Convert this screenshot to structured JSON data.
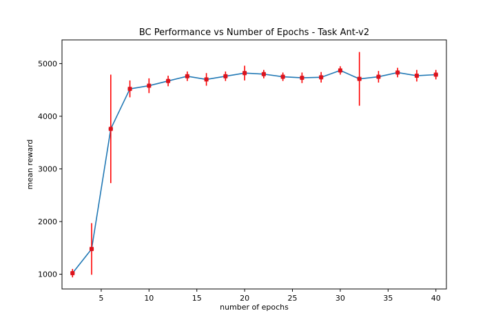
{
  "chart_data": {
    "type": "line",
    "title": "BC Performance vs Number of Epochs - Task Ant-v2",
    "xlabel": "number of epochs",
    "ylabel": "mean reward",
    "xlim": [
      0.9,
      41.1
    ],
    "ylim": [
      720,
      5450
    ],
    "xticks": [
      5,
      10,
      15,
      20,
      25,
      30,
      35,
      40
    ],
    "yticks": [
      1000,
      2000,
      3000,
      4000,
      5000
    ],
    "grid": false,
    "legend": "none",
    "line_color": "#1f77b4",
    "errorbar_color": "#ff0000",
    "marker_color": "#ff0000",
    "series": [
      {
        "x": [
          2,
          4,
          6,
          8,
          10,
          12,
          14,
          16,
          18,
          20,
          22,
          24,
          26,
          28,
          30,
          32,
          34,
          36,
          38,
          40
        ],
        "y": [
          1020,
          1480,
          3760,
          4520,
          4580,
          4670,
          4760,
          4700,
          4760,
          4820,
          4800,
          4750,
          4730,
          4740,
          4870,
          4710,
          4750,
          4830,
          4770,
          4790
        ],
        "yerr": [
          80,
          490,
          1030,
          160,
          140,
          100,
          90,
          120,
          90,
          140,
          80,
          80,
          100,
          100,
          80,
          510,
          110,
          90,
          110,
          90
        ]
      }
    ]
  }
}
